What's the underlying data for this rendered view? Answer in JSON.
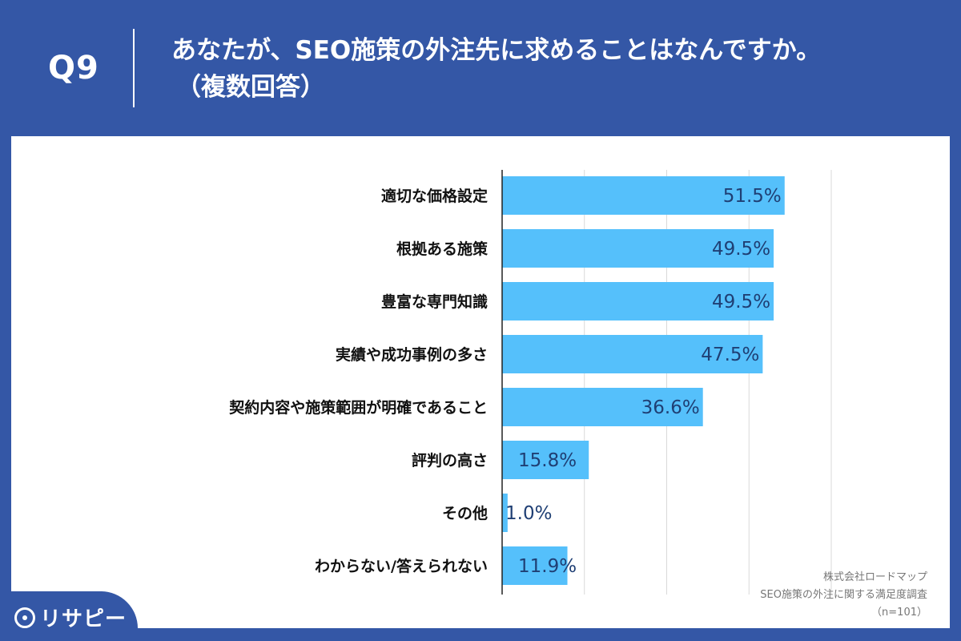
{
  "header": {
    "question_number": "Q9",
    "title_line1": "あなたが、SEO施策の外注先に求めることはなんですか。",
    "title_line2": "（複数回答）"
  },
  "source": {
    "line1": "株式会社ロードマップ",
    "line2": "SEO施策の外注に関する満足度調査",
    "line3": "（n=101）"
  },
  "logo": {
    "text": "リサピー",
    "icon": "pin-circle-icon"
  },
  "colors": {
    "background": "#3457a6",
    "bar": "#55c0fb",
    "value_text": "#1f3f74"
  },
  "chart_data": {
    "type": "bar",
    "orientation": "horizontal",
    "categories": [
      "適切な価格設定",
      "根拠ある施策",
      "豊富な専門知識",
      "実績や成功事例の多さ",
      "契約内容や施策範囲が明確であること",
      "評判の高さ",
      "その他",
      "わからない/答えられない"
    ],
    "values": [
      51.5,
      49.5,
      49.5,
      47.5,
      36.6,
      15.8,
      1.0,
      11.9
    ],
    "value_labels": [
      "51.5%",
      "49.5%",
      "49.5%",
      "47.5%",
      "36.6%",
      "15.8%",
      "1.0%",
      "11.9%"
    ],
    "xlim": [
      0,
      60
    ],
    "grid": true
  }
}
